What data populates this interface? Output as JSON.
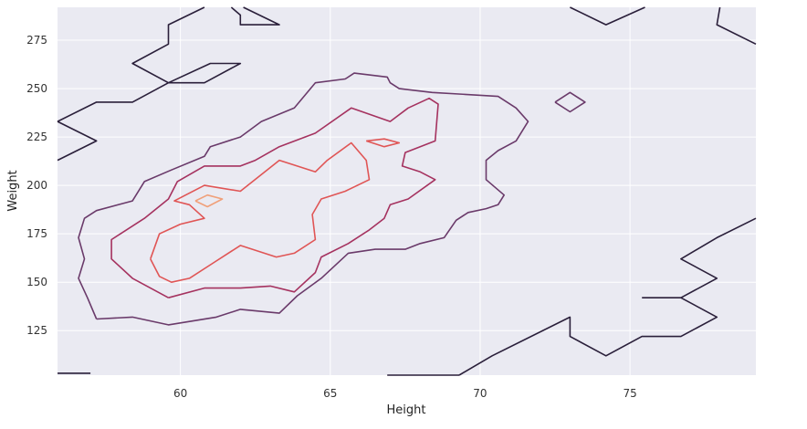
{
  "chart_data": {
    "type": "contour",
    "xlabel": "Height",
    "ylabel": "Weight",
    "xlim": [
      55.9,
      79.2
    ],
    "ylim": [
      102,
      292
    ],
    "xticks": [
      60,
      65,
      70,
      75
    ],
    "yticks": [
      125,
      150,
      175,
      200,
      225,
      250,
      275
    ],
    "grid": true,
    "background": "#eaeaf2",
    "contours": [
      {
        "level": 1,
        "color": "#2a1f3a",
        "paths": [
          [
            [
              55.9,
              213
            ],
            [
              57.2,
              223
            ],
            [
              55.9,
              233
            ]
          ],
          [
            [
              55.9,
              233
            ],
            [
              57.2,
              243
            ],
            [
              58.4,
              243
            ],
            [
              59.6,
              253
            ],
            [
              60.8,
              253
            ],
            [
              62.0,
              263
            ],
            [
              61.0,
              263
            ],
            [
              59.6,
              253
            ],
            [
              58.4,
              263
            ],
            [
              59.6,
              273
            ],
            [
              59.6,
              283
            ],
            [
              60.8,
              292
            ]
          ],
          [
            [
              61.7,
              292
            ],
            [
              62.0,
              288
            ],
            [
              62.0,
              283
            ],
            [
              63.3,
              283
            ],
            [
              62.1,
              292
            ]
          ],
          [
            [
              73.0,
              292
            ],
            [
              74.2,
              283
            ],
            [
              75.5,
              292
            ]
          ],
          [
            [
              78.0,
              292
            ],
            [
              77.9,
              283
            ],
            [
              79.2,
              273
            ]
          ],
          [
            [
              79.2,
              183
            ],
            [
              77.9,
              173
            ],
            [
              76.7,
              162
            ],
            [
              77.9,
              152
            ],
            [
              76.7,
              142
            ],
            [
              75.4,
              142
            ]
          ],
          [
            [
              76.7,
              142
            ],
            [
              77.9,
              132
            ],
            [
              76.7,
              122
            ],
            [
              75.4,
              122
            ],
            [
              74.2,
              112
            ],
            [
              73.0,
              122
            ],
            [
              73.0,
              132
            ],
            [
              70.4,
              112
            ],
            [
              69.3,
              102
            ]
          ],
          [
            [
              66.9,
              102
            ],
            [
              69.3,
              102
            ]
          ],
          [
            [
              55.9,
              103
            ],
            [
              57.0,
              103
            ]
          ]
        ]
      },
      {
        "level": 2,
        "color": "#6a3a6a",
        "paths": [
          [
            [
              72.5,
              243
            ],
            [
              73.0,
              248
            ],
            [
              73.5,
              243
            ],
            [
              73.0,
              238
            ],
            [
              72.5,
              243
            ]
          ],
          [
            [
              57.2,
              131
            ],
            [
              56.9,
              142
            ],
            [
              56.6,
              152
            ],
            [
              56.8,
              162
            ],
            [
              56.6,
              173
            ],
            [
              56.8,
              183
            ],
            [
              57.2,
              187
            ],
            [
              58.4,
              192
            ],
            [
              58.8,
              202
            ],
            [
              59.7,
              208
            ],
            [
              60.8,
              215
            ],
            [
              61.0,
              220
            ],
            [
              62.0,
              225
            ],
            [
              62.7,
              233
            ],
            [
              63.8,
              240
            ],
            [
              64.5,
              253
            ],
            [
              65.5,
              255
            ],
            [
              65.8,
              258
            ],
            [
              66.9,
              256
            ],
            [
              67.0,
              253
            ],
            [
              67.3,
              250
            ],
            [
              68.4,
              248
            ],
            [
              69.5,
              247
            ],
            [
              70.6,
              246
            ],
            [
              71.2,
              240
            ],
            [
              71.6,
              233
            ],
            [
              71.2,
              223
            ],
            [
              70.6,
              218
            ],
            [
              70.2,
              213
            ],
            [
              70.2,
              203
            ],
            [
              70.8,
              195
            ],
            [
              70.6,
              190
            ],
            [
              70.2,
              188
            ],
            [
              69.6,
              186
            ],
            [
              69.2,
              182
            ],
            [
              68.8,
              173
            ],
            [
              68.0,
              170
            ],
            [
              67.5,
              167
            ],
            [
              66.5,
              167
            ],
            [
              65.6,
              165
            ],
            [
              64.7,
              152
            ],
            [
              63.9,
              143
            ],
            [
              63.3,
              134
            ],
            [
              62.0,
              136
            ],
            [
              61.2,
              132
            ],
            [
              59.6,
              128
            ],
            [
              58.4,
              132
            ],
            [
              57.2,
              131
            ]
          ]
        ]
      },
      {
        "level": 3,
        "color": "#a5325f",
        "paths": [
          [
            [
              59.6,
              142
            ],
            [
              58.4,
              152
            ],
            [
              57.7,
              162
            ],
            [
              57.7,
              172
            ],
            [
              58.8,
              183
            ],
            [
              59.6,
              193
            ],
            [
              59.9,
              202
            ],
            [
              60.8,
              210
            ],
            [
              62.0,
              210
            ],
            [
              62.5,
              213
            ],
            [
              63.3,
              220
            ],
            [
              64.5,
              227
            ],
            [
              65.7,
              240
            ],
            [
              67.0,
              233
            ],
            [
              67.6,
              240
            ],
            [
              68.3,
              245
            ],
            [
              68.6,
              242
            ],
            [
              68.5,
              223
            ],
            [
              68.0,
              220
            ],
            [
              67.5,
              217
            ],
            [
              67.4,
              210
            ],
            [
              68.0,
              207
            ],
            [
              68.5,
              203
            ],
            [
              67.6,
              193
            ],
            [
              67.0,
              190
            ],
            [
              66.8,
              183
            ],
            [
              66.3,
              177
            ],
            [
              65.6,
              170
            ],
            [
              64.7,
              163
            ],
            [
              64.5,
              155
            ],
            [
              63.8,
              145
            ],
            [
              63.0,
              148
            ],
            [
              62.0,
              147
            ],
            [
              60.8,
              147
            ],
            [
              59.6,
              142
            ]
          ]
        ]
      },
      {
        "level": 4,
        "color": "#e05555",
        "paths": [
          [
            [
              59.0,
              162
            ],
            [
              59.3,
              153
            ],
            [
              59.7,
              150
            ],
            [
              60.3,
              152
            ],
            [
              61.1,
              160
            ],
            [
              62.0,
              169
            ],
            [
              63.2,
              163
            ],
            [
              63.8,
              165
            ],
            [
              64.5,
              172
            ],
            [
              64.4,
              185
            ],
            [
              64.7,
              193
            ],
            [
              65.5,
              197
            ],
            [
              66.3,
              203
            ],
            [
              66.2,
              213
            ],
            [
              65.7,
              222
            ],
            [
              64.9,
              213
            ],
            [
              64.5,
              207
            ],
            [
              63.3,
              213
            ],
            [
              62.0,
              197
            ],
            [
              60.8,
              200
            ],
            [
              59.8,
              192
            ],
            [
              60.3,
              190
            ],
            [
              60.8,
              183
            ],
            [
              60.0,
              180
            ],
            [
              59.3,
              175
            ],
            [
              59.0,
              162
            ]
          ],
          [
            [
              66.2,
              223
            ],
            [
              66.8,
              224
            ],
            [
              67.3,
              222
            ],
            [
              66.8,
              220
            ],
            [
              66.2,
              223
            ]
          ]
        ]
      },
      {
        "level": 5,
        "color": "#f0a07a",
        "paths": [
          [
            [
              60.5,
              192
            ],
            [
              60.9,
              195
            ],
            [
              61.4,
              193
            ],
            [
              60.9,
              189
            ],
            [
              60.5,
              192
            ]
          ]
        ]
      }
    ]
  }
}
